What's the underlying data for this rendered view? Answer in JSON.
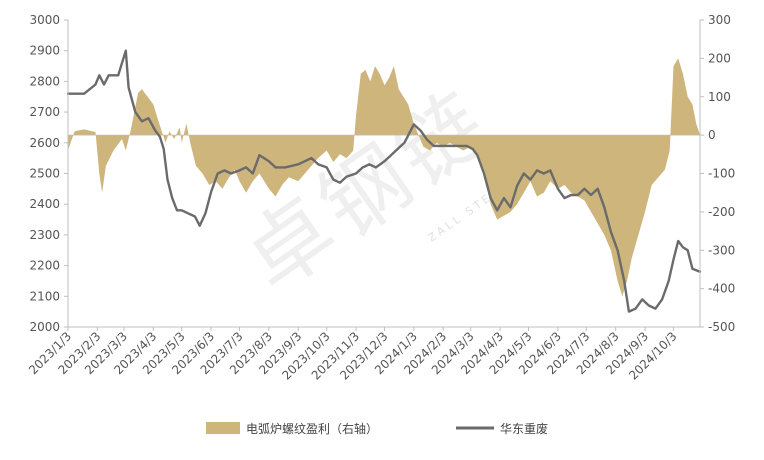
{
  "chart_data": {
    "type": "area+line",
    "title": "",
    "xlabel": "",
    "ylabel": "",
    "ylim": [
      2000,
      3000
    ],
    "y2lim": [
      -500,
      300
    ],
    "yticks": [
      2000,
      2100,
      2200,
      2300,
      2400,
      2500,
      2600,
      2700,
      2800,
      2900,
      3000
    ],
    "y2ticks": [
      -500,
      -400,
      -300,
      -200,
      -100,
      0,
      100,
      200,
      300
    ],
    "xlim": [
      "2023-01-03",
      "2024-10-31"
    ],
    "xticks": [
      "2023/1/3",
      "2023/2/3",
      "2023/3/3",
      "2023/4/3",
      "2023/5/3",
      "2023/6/3",
      "2023/7/3",
      "2023/8/3",
      "2023/9/3",
      "2023/10/3",
      "2023/11/3",
      "2023/12/3",
      "2024/1/3",
      "2024/2/3",
      "2024/3/3",
      "2024/4/3",
      "2024/5/3",
      "2024/6/3",
      "2024/7/3",
      "2024/8/3",
      "2024/9/3",
      "2024/10/3"
    ],
    "legend_position": "bottom",
    "grid": false,
    "watermark": "卓钢链",
    "watermark_sub": "ZALL STEEL",
    "colors": {
      "area": "#CDB57C",
      "line": "#6B6B6B",
      "axis": "#BFBFBF"
    },
    "series": [
      {
        "name": "电弧炉螺纹盈利（右轴）",
        "type": "area",
        "axis": "right",
        "points": [
          [
            "2023-01-03",
            -40
          ],
          [
            "2023-01-10",
            10
          ],
          [
            "2023-01-20",
            15
          ],
          [
            "2023-02-01",
            8
          ],
          [
            "2023-02-05",
            -100
          ],
          [
            "2023-02-08",
            -150
          ],
          [
            "2023-02-12",
            -80
          ],
          [
            "2023-02-20",
            -40
          ],
          [
            "2023-03-01",
            -10
          ],
          [
            "2023-03-05",
            -40
          ],
          [
            "2023-03-10",
            10
          ],
          [
            "2023-03-14",
            60
          ],
          [
            "2023-03-18",
            110
          ],
          [
            "2023-03-22",
            120
          ],
          [
            "2023-03-28",
            100
          ],
          [
            "2023-04-03",
            80
          ],
          [
            "2023-04-08",
            40
          ],
          [
            "2023-04-12",
            10
          ],
          [
            "2023-04-16",
            -20
          ],
          [
            "2023-04-20",
            10
          ],
          [
            "2023-04-25",
            -10
          ],
          [
            "2023-05-01",
            20
          ],
          [
            "2023-05-03",
            -20
          ],
          [
            "2023-05-08",
            30
          ],
          [
            "2023-05-12",
            -20
          ],
          [
            "2023-05-18",
            -80
          ],
          [
            "2023-05-25",
            -100
          ],
          [
            "2023-06-01",
            -130
          ],
          [
            "2023-06-08",
            -120
          ],
          [
            "2023-06-15",
            -140
          ],
          [
            "2023-06-22",
            -110
          ],
          [
            "2023-06-28",
            -90
          ],
          [
            "2023-07-03",
            -120
          ],
          [
            "2023-07-10",
            -150
          ],
          [
            "2023-07-17",
            -120
          ],
          [
            "2023-07-24",
            -100
          ],
          [
            "2023-08-03",
            -140
          ],
          [
            "2023-08-10",
            -160
          ],
          [
            "2023-08-17",
            -130
          ],
          [
            "2023-08-24",
            -110
          ],
          [
            "2023-09-03",
            -120
          ],
          [
            "2023-09-10",
            -100
          ],
          [
            "2023-09-17",
            -80
          ],
          [
            "2023-09-24",
            -60
          ],
          [
            "2023-10-03",
            -40
          ],
          [
            "2023-10-10",
            -70
          ],
          [
            "2023-10-17",
            -50
          ],
          [
            "2023-10-24",
            -60
          ],
          [
            "2023-10-31",
            -40
          ],
          [
            "2023-11-03",
            50
          ],
          [
            "2023-11-08",
            160
          ],
          [
            "2023-11-13",
            170
          ],
          [
            "2023-11-18",
            140
          ],
          [
            "2023-11-23",
            180
          ],
          [
            "2023-11-28",
            160
          ],
          [
            "2023-12-03",
            130
          ],
          [
            "2023-12-08",
            150
          ],
          [
            "2023-12-13",
            180
          ],
          [
            "2023-12-18",
            120
          ],
          [
            "2023-12-23",
            100
          ],
          [
            "2023-12-28",
            80
          ],
          [
            "2024-01-03",
            30
          ],
          [
            "2024-01-08",
            0
          ],
          [
            "2024-01-13",
            -30
          ],
          [
            "2024-01-20",
            -40
          ],
          [
            "2024-01-27",
            -20
          ],
          [
            "2024-02-03",
            -30
          ],
          [
            "2024-02-10",
            -20
          ],
          [
            "2024-02-17",
            -30
          ],
          [
            "2024-02-24",
            -40
          ],
          [
            "2024-03-03",
            -30
          ],
          [
            "2024-03-10",
            -50
          ],
          [
            "2024-03-17",
            -100
          ],
          [
            "2024-03-24",
            -180
          ],
          [
            "2024-03-31",
            -220
          ],
          [
            "2024-04-07",
            -210
          ],
          [
            "2024-04-14",
            -200
          ],
          [
            "2024-04-21",
            -180
          ],
          [
            "2024-04-28",
            -150
          ],
          [
            "2024-05-05",
            -120
          ],
          [
            "2024-05-12",
            -160
          ],
          [
            "2024-05-19",
            -150
          ],
          [
            "2024-05-26",
            -120
          ],
          [
            "2024-06-03",
            -140
          ],
          [
            "2024-06-10",
            -130
          ],
          [
            "2024-06-17",
            -150
          ],
          [
            "2024-06-24",
            -160
          ],
          [
            "2024-07-01",
            -170
          ],
          [
            "2024-07-08",
            -200
          ],
          [
            "2024-07-15",
            -230
          ],
          [
            "2024-07-22",
            -260
          ],
          [
            "2024-07-29",
            -300
          ],
          [
            "2024-08-05",
            -380
          ],
          [
            "2024-08-10",
            -420
          ],
          [
            "2024-08-15",
            -380
          ],
          [
            "2024-08-20",
            -320
          ],
          [
            "2024-08-27",
            -260
          ],
          [
            "2024-09-03",
            -200
          ],
          [
            "2024-09-10",
            -130
          ],
          [
            "2024-09-17",
            -110
          ],
          [
            "2024-09-24",
            -90
          ],
          [
            "2024-09-29",
            -40
          ],
          [
            "2024-10-03",
            180
          ],
          [
            "2024-10-08",
            200
          ],
          [
            "2024-10-13",
            160
          ],
          [
            "2024-10-18",
            100
          ],
          [
            "2024-10-23",
            80
          ],
          [
            "2024-10-27",
            30
          ],
          [
            "2024-10-31",
            0
          ]
        ]
      },
      {
        "name": "华东重废",
        "type": "line",
        "axis": "left",
        "points": [
          [
            "2023-01-03",
            2760
          ],
          [
            "2023-01-20",
            2760
          ],
          [
            "2023-02-01",
            2790
          ],
          [
            "2023-02-05",
            2820
          ],
          [
            "2023-02-10",
            2790
          ],
          [
            "2023-02-15",
            2820
          ],
          [
            "2023-02-25",
            2820
          ],
          [
            "2023-03-05",
            2900
          ],
          [
            "2023-03-08",
            2780
          ],
          [
            "2023-03-15",
            2700
          ],
          [
            "2023-03-22",
            2670
          ],
          [
            "2023-03-29",
            2680
          ],
          [
            "2023-04-05",
            2640
          ],
          [
            "2023-04-10",
            2620
          ],
          [
            "2023-04-14",
            2580
          ],
          [
            "2023-04-18",
            2480
          ],
          [
            "2023-04-23",
            2420
          ],
          [
            "2023-04-28",
            2380
          ],
          [
            "2023-05-03",
            2380
          ],
          [
            "2023-05-10",
            2370
          ],
          [
            "2023-05-17",
            2360
          ],
          [
            "2023-05-22",
            2330
          ],
          [
            "2023-05-28",
            2370
          ],
          [
            "2023-06-03",
            2440
          ],
          [
            "2023-06-10",
            2500
          ],
          [
            "2023-06-17",
            2510
          ],
          [
            "2023-06-24",
            2500
          ],
          [
            "2023-07-03",
            2510
          ],
          [
            "2023-07-10",
            2520
          ],
          [
            "2023-07-17",
            2500
          ],
          [
            "2023-07-24",
            2560
          ],
          [
            "2023-08-03",
            2540
          ],
          [
            "2023-08-10",
            2520
          ],
          [
            "2023-08-20",
            2520
          ],
          [
            "2023-09-03",
            2530
          ],
          [
            "2023-09-10",
            2540
          ],
          [
            "2023-09-17",
            2550
          ],
          [
            "2023-09-24",
            2530
          ],
          [
            "2023-10-03",
            2520
          ],
          [
            "2023-10-10",
            2480
          ],
          [
            "2023-10-17",
            2470
          ],
          [
            "2023-10-24",
            2490
          ],
          [
            "2023-11-03",
            2500
          ],
          [
            "2023-11-10",
            2520
          ],
          [
            "2023-11-17",
            2530
          ],
          [
            "2023-11-24",
            2520
          ],
          [
            "2023-12-03",
            2540
          ],
          [
            "2023-12-10",
            2560
          ],
          [
            "2023-12-17",
            2580
          ],
          [
            "2023-12-24",
            2600
          ],
          [
            "2024-01-03",
            2660
          ],
          [
            "2024-01-10",
            2640
          ],
          [
            "2024-01-17",
            2610
          ],
          [
            "2024-01-24",
            2590
          ],
          [
            "2024-02-03",
            2590
          ],
          [
            "2024-02-15",
            2590
          ],
          [
            "2024-02-28",
            2590
          ],
          [
            "2024-03-05",
            2580
          ],
          [
            "2024-03-10",
            2560
          ],
          [
            "2024-03-17",
            2500
          ],
          [
            "2024-03-24",
            2420
          ],
          [
            "2024-03-31",
            2380
          ],
          [
            "2024-04-07",
            2420
          ],
          [
            "2024-04-14",
            2390
          ],
          [
            "2024-04-21",
            2460
          ],
          [
            "2024-04-28",
            2500
          ],
          [
            "2024-05-05",
            2480
          ],
          [
            "2024-05-12",
            2510
          ],
          [
            "2024-05-19",
            2500
          ],
          [
            "2024-05-26",
            2510
          ],
          [
            "2024-06-03",
            2450
          ],
          [
            "2024-06-10",
            2420
          ],
          [
            "2024-06-17",
            2430
          ],
          [
            "2024-06-24",
            2430
          ],
          [
            "2024-07-01",
            2450
          ],
          [
            "2024-07-08",
            2430
          ],
          [
            "2024-07-15",
            2450
          ],
          [
            "2024-07-22",
            2390
          ],
          [
            "2024-07-29",
            2310
          ],
          [
            "2024-08-05",
            2250
          ],
          [
            "2024-08-12",
            2150
          ],
          [
            "2024-08-17",
            2050
          ],
          [
            "2024-08-24",
            2060
          ],
          [
            "2024-08-31",
            2090
          ],
          [
            "2024-09-07",
            2070
          ],
          [
            "2024-09-14",
            2060
          ],
          [
            "2024-09-21",
            2090
          ],
          [
            "2024-09-28",
            2150
          ],
          [
            "2024-10-03",
            2220
          ],
          [
            "2024-10-08",
            2280
          ],
          [
            "2024-10-13",
            2260
          ],
          [
            "2024-10-18",
            2250
          ],
          [
            "2024-10-23",
            2190
          ],
          [
            "2024-10-31",
            2180
          ]
        ]
      }
    ]
  }
}
